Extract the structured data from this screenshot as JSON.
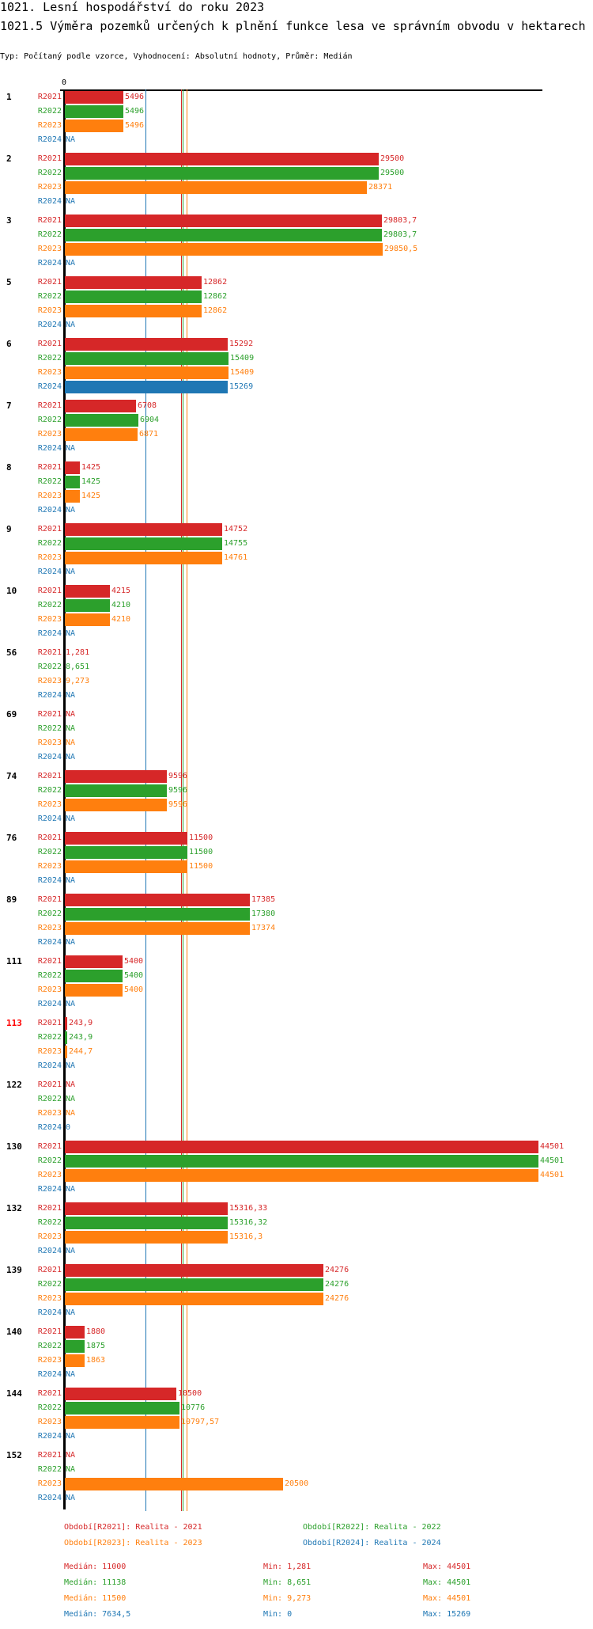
{
  "header": {
    "title": "1021. Lesní hospodářství do roku 2023",
    "subtitle": "1021.5 Výměra pozemků určených k plnění funkce lesa ve správním obvodu v hektarech",
    "meta": "Typ: Počítaný podle vzorce, Vyhodnocení: Absolutní hodnoty, Průměr: Medián"
  },
  "chart_data": {
    "type": "bar",
    "orientation": "horizontal",
    "title": "1021.5 Výměra pozemků určených k plnění funkce lesa ve správním obvodu v hektarech",
    "xlim": [
      0,
      44501
    ],
    "x_tick_labels": [
      "0"
    ],
    "categories": [
      "1",
      "2",
      "3",
      "5",
      "6",
      "7",
      "8",
      "9",
      "10",
      "56",
      "69",
      "74",
      "76",
      "89",
      "111",
      "113",
      "122",
      "130",
      "132",
      "139",
      "140",
      "144",
      "152"
    ],
    "highlighted_category": "113",
    "series": [
      {
        "name": "R2021",
        "color": "#d62728",
        "values": [
          5496,
          29500,
          29803.7,
          12862,
          15292,
          6708,
          1425,
          14752,
          4215,
          1.281,
          null,
          9596,
          11500,
          17385,
          5400,
          243.9,
          null,
          44501,
          15316.33,
          24276,
          1880,
          10500,
          null
        ],
        "labels": [
          "5496",
          "29500",
          "29803,7",
          "12862",
          "15292",
          "6708",
          "1425",
          "14752",
          "4215",
          "1,281",
          "NA",
          "9596",
          "11500",
          "17385",
          "5400",
          "243,9",
          "NA",
          "44501",
          "15316,33",
          "24276",
          "1880",
          "10500",
          "NA"
        ]
      },
      {
        "name": "R2022",
        "color": "#2ca02c",
        "values": [
          5496,
          29500,
          29803.7,
          12862,
          15409,
          6904,
          1425,
          14755,
          4210,
          8.651,
          null,
          9596,
          11500,
          17380,
          5400,
          243.9,
          null,
          44501,
          15316.32,
          24276,
          1875,
          10776,
          null
        ],
        "labels": [
          "5496",
          "29500",
          "29803,7",
          "12862",
          "15409",
          "6904",
          "1425",
          "14755",
          "4210",
          "8,651",
          "NA",
          "9596",
          "11500",
          "17380",
          "5400",
          "243,9",
          "NA",
          "44501",
          "15316,32",
          "24276",
          "1875",
          "10776",
          "NA"
        ]
      },
      {
        "name": "R2023",
        "color": "#ff7f0e",
        "values": [
          5496,
          28371,
          29850.5,
          12862,
          15409,
          6871,
          1425,
          14761,
          4210,
          9.273,
          null,
          9596,
          11500,
          17374,
          5400,
          244.7,
          null,
          44501,
          15316.3,
          24276,
          1863,
          10797.57,
          20500
        ],
        "labels": [
          "5496",
          "28371",
          "29850,5",
          "12862",
          "15409",
          "6871",
          "1425",
          "14761",
          "4210",
          "9,273",
          "NA",
          "9596",
          "11500",
          "17374",
          "5400",
          "244,7",
          "NA",
          "44501",
          "15316,3",
          "24276",
          "1863",
          "10797,57",
          "20500"
        ]
      },
      {
        "name": "R2024",
        "color": "#1f77b4",
        "values": [
          null,
          null,
          null,
          null,
          15269,
          null,
          null,
          null,
          null,
          null,
          null,
          null,
          null,
          null,
          null,
          null,
          0,
          null,
          null,
          null,
          null,
          null,
          null
        ],
        "labels": [
          "NA",
          "NA",
          "NA",
          "NA",
          "15269",
          "NA",
          "NA",
          "NA",
          "NA",
          "NA",
          "NA",
          "NA",
          "NA",
          "NA",
          "NA",
          "NA",
          "0",
          "NA",
          "NA",
          "NA",
          "NA",
          "NA",
          "NA"
        ]
      }
    ],
    "medians": [
      11000,
      11138,
      11500,
      7634.5
    ],
    "legend": [
      {
        "label": "Období[R2021]: Realita - 2021"
      },
      {
        "label": "Období[R2022]: Realita - 2022"
      },
      {
        "label": "Období[R2023]: Realita - 2023"
      },
      {
        "label": "Období[R2024]: Realita - 2024"
      }
    ],
    "stats": [
      {
        "median": "Medián: 11000",
        "min": "Min: 1,281",
        "max": "Max: 44501"
      },
      {
        "median": "Medián: 11138",
        "min": "Min: 8,651",
        "max": "Max: 44501"
      },
      {
        "median": "Medián: 11500",
        "min": "Min: 9,273",
        "max": "Max: 44501"
      },
      {
        "median": "Medián: 7634,5",
        "min": "Min: 0",
        "max": "Max: 15269"
      }
    ]
  }
}
